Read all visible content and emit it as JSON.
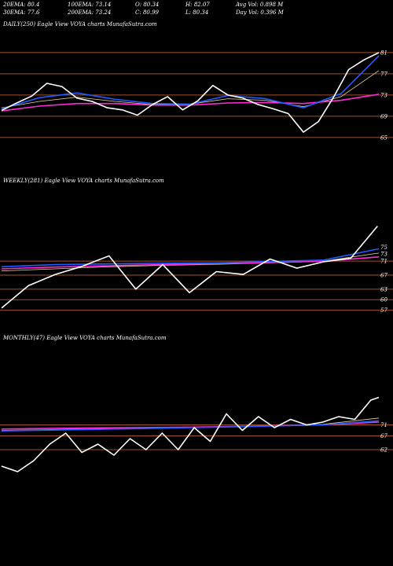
{
  "header": {
    "row1": [
      {
        "key": "ema20",
        "text": "20EMA: 80.4"
      },
      {
        "key": "ema100",
        "text": "100EMA: 73.14"
      },
      {
        "key": "open",
        "text": "O: 80.34"
      },
      {
        "key": "high",
        "text": "H: 82.07"
      },
      {
        "key": "avgvol",
        "text": "Avg Vol: 0.898 M"
      }
    ],
    "row2": [
      {
        "key": "ema30",
        "text": "30EMA: 77.6"
      },
      {
        "key": "ema200",
        "text": "200EMA: 73.24"
      },
      {
        "key": "close",
        "text": "C: 80.99"
      },
      {
        "key": "low",
        "text": "L: 80.34"
      },
      {
        "key": "dayvol",
        "text": "Day Vol: 0.396  M"
      }
    ]
  },
  "colors": {
    "background": "#000000",
    "price": "#ffffff",
    "ema_fast": "#1f5bff",
    "ema_slow": "#ff2ad4",
    "ema_mid": "#e8d9a0",
    "ema_other": "#c07a50",
    "level_line": "#a0522d"
  },
  "chart_data": [
    {
      "type": "line",
      "title": "DAILY(250) Eagle   View  VOYA charts MunafaSutra.com",
      "y_ticks": [
        81,
        77,
        73,
        69,
        65
      ],
      "ylim": [
        63.5,
        83.5
      ],
      "grid": false,
      "levels": [
        81,
        77,
        73,
        69,
        65
      ],
      "series": [
        {
          "role": "price",
          "x": [
            0,
            10,
            20,
            30,
            40,
            50,
            60,
            70,
            80,
            90,
            100,
            110,
            120,
            130,
            140,
            150,
            160,
            170,
            180,
            190,
            200,
            210,
            220,
            230,
            240,
            250
          ],
          "values": [
            70.1,
            71.5,
            72.8,
            75.2,
            74.6,
            72.4,
            71.8,
            70.6,
            70.2,
            69.2,
            71.2,
            72.7,
            70.2,
            71.9,
            74.8,
            73.0,
            72.4,
            71.2,
            70.4,
            69.5,
            66.0,
            68.0,
            72.6,
            77.8,
            79.6,
            80.99
          ]
        },
        {
          "role": "ema_fast",
          "x": [
            0,
            25,
            50,
            75,
            100,
            125,
            150,
            175,
            200,
            225,
            250
          ],
          "values": [
            70.4,
            72.5,
            73.4,
            72.2,
            71.4,
            71.3,
            72.9,
            72.3,
            70.6,
            73.3,
            80.4
          ]
        },
        {
          "role": "ema_slow",
          "x": [
            0,
            25,
            50,
            75,
            100,
            125,
            150,
            175,
            200,
            225,
            250
          ],
          "values": [
            70.0,
            70.9,
            71.4,
            71.4,
            71.1,
            71.1,
            71.5,
            71.6,
            71.4,
            72.0,
            73.14
          ]
        },
        {
          "role": "ema_mid",
          "x": [
            0,
            25,
            50,
            75,
            100,
            125,
            150,
            175,
            200,
            225,
            250
          ],
          "values": [
            70.6,
            71.8,
            72.6,
            71.8,
            71.2,
            71.3,
            72.3,
            72.0,
            70.8,
            72.7,
            77.6
          ]
        }
      ]
    },
    {
      "type": "line",
      "title": "WEEKLY(281) Eagle   View  VOYA charts MunafaSutra.com",
      "y_ticks": [
        75,
        73,
        71,
        67,
        63,
        60,
        57
      ],
      "ylim": [
        54,
        80
      ],
      "grid": false,
      "levels": [
        71,
        67,
        63,
        60,
        57
      ],
      "series": [
        {
          "role": "price",
          "x": [
            0,
            20,
            40,
            60,
            80,
            100,
            120,
            140,
            160,
            180,
            200,
            220,
            240,
            260,
            280
          ],
          "values": [
            57.6,
            64.0,
            67.2,
            69.5,
            72.5,
            63.0,
            70.0,
            62.0,
            68.0,
            67.2,
            71.6,
            69.0,
            70.8,
            71.8,
            80.99
          ]
        },
        {
          "role": "ema_fast",
          "x": [
            0,
            40,
            80,
            120,
            160,
            200,
            240,
            281
          ],
          "values": [
            69.4,
            70.0,
            70.2,
            70.4,
            70.5,
            70.9,
            71.3,
            74.5
          ]
        },
        {
          "role": "ema_slow",
          "x": [
            0,
            40,
            80,
            120,
            160,
            200,
            240,
            281
          ],
          "values": [
            68.8,
            69.3,
            69.7,
            70.0,
            70.3,
            70.6,
            71.0,
            72.2
          ]
        },
        {
          "role": "ema_mid",
          "x": [
            0,
            40,
            80,
            120,
            160,
            200,
            240,
            281
          ],
          "values": [
            68.2,
            68.8,
            69.4,
            69.8,
            70.1,
            70.5,
            71.0,
            73.3
          ]
        }
      ]
    },
    {
      "type": "line",
      "title": "MONTHLY(47) Eagle   View  VOYA charts MunafaSutra.com",
      "y_ticks": [
        71,
        67,
        62
      ],
      "ylim": [
        44,
        84
      ],
      "grid": false,
      "levels": [
        71,
        67,
        62
      ],
      "series": [
        {
          "role": "price",
          "x": [
            0,
            2,
            4,
            6,
            8,
            10,
            12,
            14,
            16,
            18,
            20,
            22,
            24,
            26,
            28,
            30,
            32,
            34,
            36,
            38,
            40,
            42,
            44,
            46,
            47
          ],
          "values": [
            56.0,
            54.0,
            58.0,
            64.0,
            68.0,
            61.0,
            64.0,
            60.0,
            66.0,
            62.0,
            68.0,
            62.0,
            70.0,
            65.0,
            75.0,
            69.0,
            74.0,
            70.0,
            73.0,
            71.0,
            72.0,
            74.0,
            73.0,
            80.0,
            81.0
          ]
        },
        {
          "role": "ema_fast",
          "x": [
            0,
            8,
            16,
            24,
            32,
            40,
            47
          ],
          "values": [
            68.8,
            69.2,
            69.6,
            70.0,
            70.5,
            71.0,
            72.5
          ]
        },
        {
          "role": "ema_slow",
          "x": [
            0,
            8,
            16,
            24,
            32,
            40,
            47
          ],
          "values": [
            69.5,
            69.8,
            70.0,
            70.2,
            70.6,
            71.0,
            72.0
          ]
        },
        {
          "role": "ema_mid",
          "x": [
            0,
            8,
            16,
            24,
            32,
            40,
            47
          ],
          "values": [
            69.0,
            69.4,
            69.8,
            70.1,
            70.6,
            71.2,
            73.5
          ]
        }
      ]
    }
  ]
}
